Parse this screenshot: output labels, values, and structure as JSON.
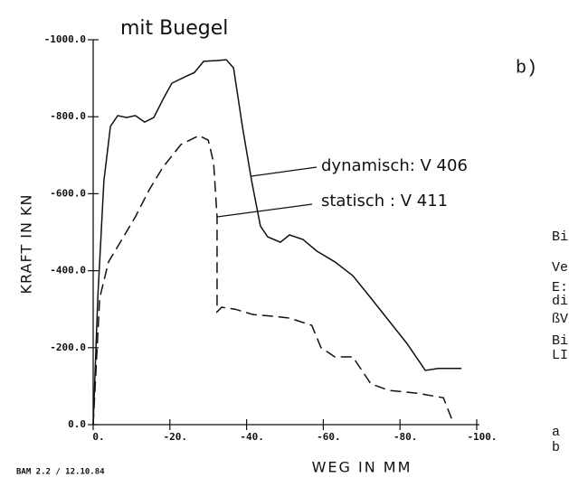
{
  "chart_data": {
    "type": "line",
    "title": "mit Buegel",
    "panel_label": "b)",
    "ylabel": "KRAFT IN KN",
    "xlabel": "WEG IN MM",
    "footer": "BAM 2.2 / 12.10.84",
    "side_text": [
      "Bi",
      "Ve",
      "E:",
      "di",
      "ßV",
      "Bi",
      "LI",
      "a",
      "b"
    ],
    "xlim": [
      0,
      -100
    ],
    "ylim": [
      0,
      -1000
    ],
    "xticks": [
      {
        "value": 0,
        "label": "0."
      },
      {
        "value": -20,
        "label": "-20."
      },
      {
        "value": -40,
        "label": "-40."
      },
      {
        "value": -60,
        "label": "-60."
      },
      {
        "value": -80,
        "label": "-80."
      },
      {
        "value": -100,
        "label": "-100."
      }
    ],
    "yticks": [
      {
        "value": 0,
        "label": "0.0"
      },
      {
        "value": -200,
        "label": "-200.0"
      },
      {
        "value": -400,
        "label": "-400.0"
      },
      {
        "value": -600,
        "label": "-600.0"
      },
      {
        "value": -800,
        "label": "-800.0"
      },
      {
        "value": -1000,
        "label": "-1000.0"
      }
    ],
    "series": [
      {
        "name": "dynamisch: V 406",
        "color": "#111111",
        "line_style": "solid",
        "x": [
          0,
          -1.2,
          -2.8,
          -4.5,
          -6.4,
          -8.7,
          -11,
          -13.4,
          -15.8,
          -18.2,
          -20.5,
          -24,
          -26.4,
          -28.8,
          -32.3,
          -34.7,
          -36.6,
          -38.9,
          -41.3,
          -43.6,
          -45.5,
          -48.8,
          -51.2,
          -54.7,
          -58.3,
          -63,
          -67.7,
          -72.4,
          -77.1,
          -81.8,
          -86.6,
          -90,
          -96
        ],
        "values": [
          0,
          -329,
          -634,
          -775,
          -803,
          -798,
          -803,
          -786,
          -798,
          -845,
          -887,
          -904,
          -915,
          -944,
          -946,
          -948,
          -927,
          -775,
          -634,
          -516,
          -488,
          -474,
          -493,
          -481,
          -451,
          -423,
          -387,
          -329,
          -270,
          -211,
          -141,
          -146,
          -146
        ]
      },
      {
        "name": "statisch : V 411",
        "color": "#111111",
        "line_style": "dashed",
        "x": [
          0,
          -1.7,
          -4,
          -7.5,
          -11,
          -14.6,
          -18.2,
          -22.9,
          -27.6,
          -30,
          -31.4,
          -32.3,
          -32.3,
          -33.5,
          -37,
          -41.7,
          -46.5,
          -51.2,
          -57,
          -59.4,
          -63,
          -67.7,
          -72.4,
          -77.1,
          -84.2,
          -91.3,
          -93.6
        ],
        "values": [
          0,
          -329,
          -423,
          -481,
          -540,
          -610,
          -669,
          -728,
          -751,
          -739,
          -681,
          -540,
          -293,
          -305,
          -300,
          -286,
          -282,
          -277,
          -258,
          -200,
          -176,
          -176,
          -106,
          -89,
          -82,
          -70,
          -12
        ]
      }
    ]
  }
}
